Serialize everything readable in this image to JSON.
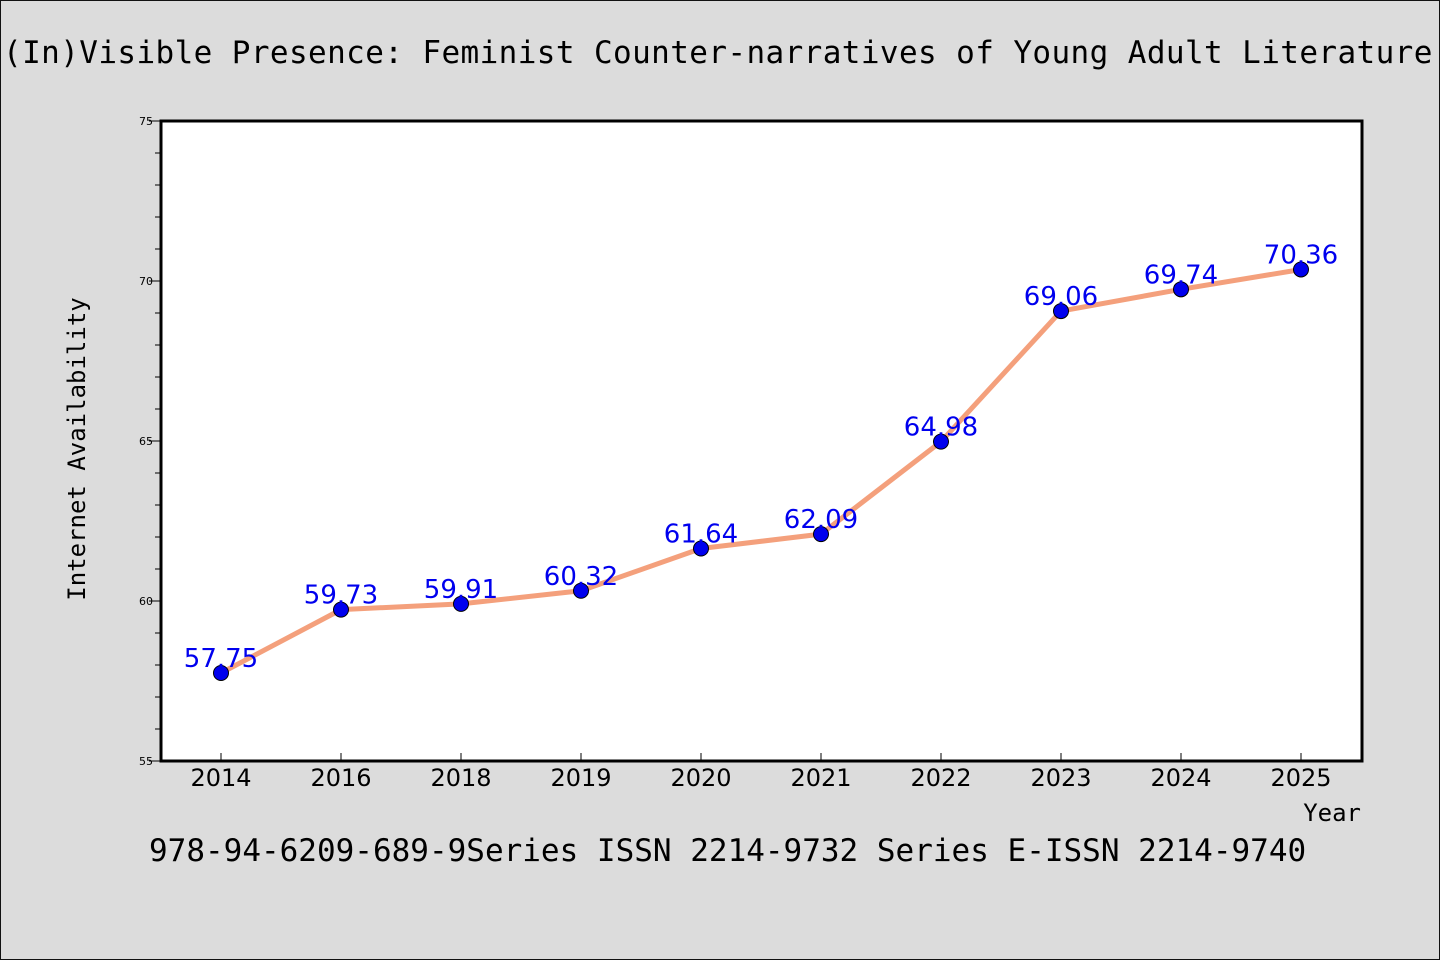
{
  "title": "(In)Visible Presence: Feminist Counter-narratives of Young Adult Literature by W",
  "footer": "978-94-6209-689-9Series ISSN 2214-9732 Series E-ISSN 2214-9740",
  "colors": {
    "background": "#dcdcdc",
    "plot_background": "#ffffff",
    "line": "#f4a07c",
    "marker": "#0000ee",
    "data_label": "#0000ee"
  },
  "chart_data": {
    "type": "line",
    "categories": [
      "2014",
      "2016",
      "2018",
      "2019",
      "2020",
      "2021",
      "2022",
      "2023",
      "2024",
      "2025"
    ],
    "values": [
      57.75,
      59.73,
      59.91,
      60.32,
      61.64,
      62.09,
      64.98,
      69.06,
      69.74,
      70.36
    ],
    "data_labels": [
      "57.75",
      "59.73",
      "59.91",
      "60.32",
      "61.64",
      "62.09",
      "64.98",
      "69.06",
      "69.74",
      "70.36"
    ],
    "ylim": [
      55,
      75
    ],
    "yticks": [
      "55",
      "60",
      "65",
      "70",
      "75"
    ],
    "ytick_values": [
      55,
      60,
      65,
      70,
      75
    ],
    "xlabel": "Year",
    "ylabel": "Internet Availability",
    "grid": false,
    "legend": "none"
  }
}
